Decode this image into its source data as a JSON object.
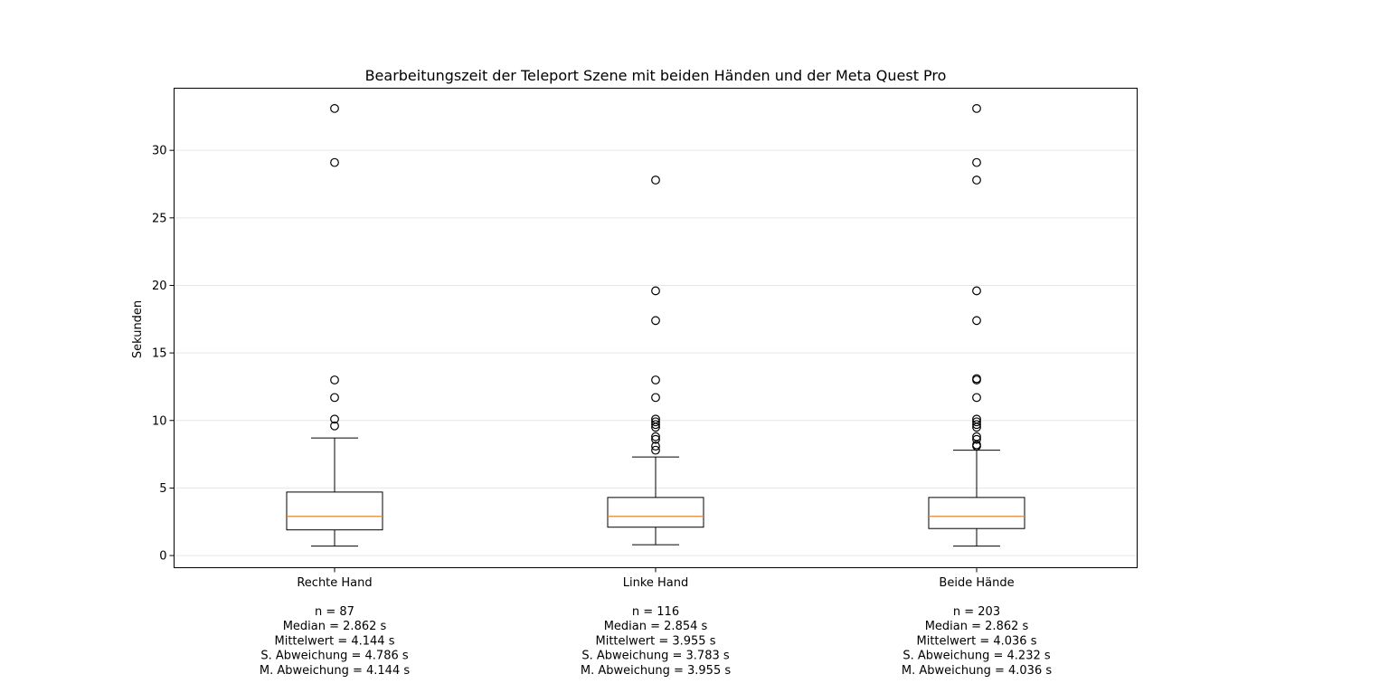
{
  "chart_data": {
    "type": "boxplot",
    "title": "Bearbeitungszeit der Teleport Szene mit beiden Händen und der Meta Quest Pro",
    "xlabel": "",
    "ylabel": "Sekunden",
    "ylim": [
      -0.9,
      34.6
    ],
    "yticks": [
      0,
      5,
      10,
      15,
      20,
      25,
      30
    ],
    "grid": "horizontal",
    "colors": {
      "box": "#000000",
      "median": "#ff7f0e",
      "grid": "#e6e6e6"
    },
    "groups": [
      {
        "label": "Rechte Hand",
        "stats": [
          "n = 87",
          "Median = 2.862 s",
          "Mittelwert = 4.144 s",
          "S. Abweichung = 4.786 s",
          "M. Abweichung = 4.144 s"
        ],
        "whisker_low": 0.7,
        "q1": 1.9,
        "median": 2.9,
        "q3": 4.7,
        "whisker_high": 8.7,
        "outliers": [
          9.6,
          10.1,
          11.7,
          13.0,
          29.1,
          33.1
        ]
      },
      {
        "label": "Linke Hand",
        "stats": [
          "n = 116",
          "Median = 2.854 s",
          "Mittelwert = 3.955 s",
          "S. Abweichung = 3.783 s",
          "M. Abweichung = 3.955 s"
        ],
        "whisker_low": 0.8,
        "q1": 2.1,
        "median": 2.9,
        "q3": 4.3,
        "whisker_high": 7.3,
        "outliers": [
          7.8,
          8.1,
          8.6,
          8.8,
          9.5,
          9.7,
          9.9,
          10.1,
          11.7,
          13.0,
          17.4,
          19.6,
          27.8
        ]
      },
      {
        "label": "Beide Hände",
        "stats": [
          "n = 203",
          "Median = 2.862 s",
          "Mittelwert = 4.036 s",
          "S. Abweichung = 4.232 s",
          "M. Abweichung = 4.036 s"
        ],
        "whisker_low": 0.7,
        "q1": 2.0,
        "median": 2.9,
        "q3": 4.3,
        "whisker_high": 7.8,
        "outliers": [
          8.1,
          8.2,
          8.6,
          8.8,
          9.5,
          9.7,
          9.9,
          10.1,
          11.7,
          13.0,
          13.1,
          17.4,
          19.6,
          27.8,
          29.1,
          33.1
        ]
      }
    ]
  }
}
